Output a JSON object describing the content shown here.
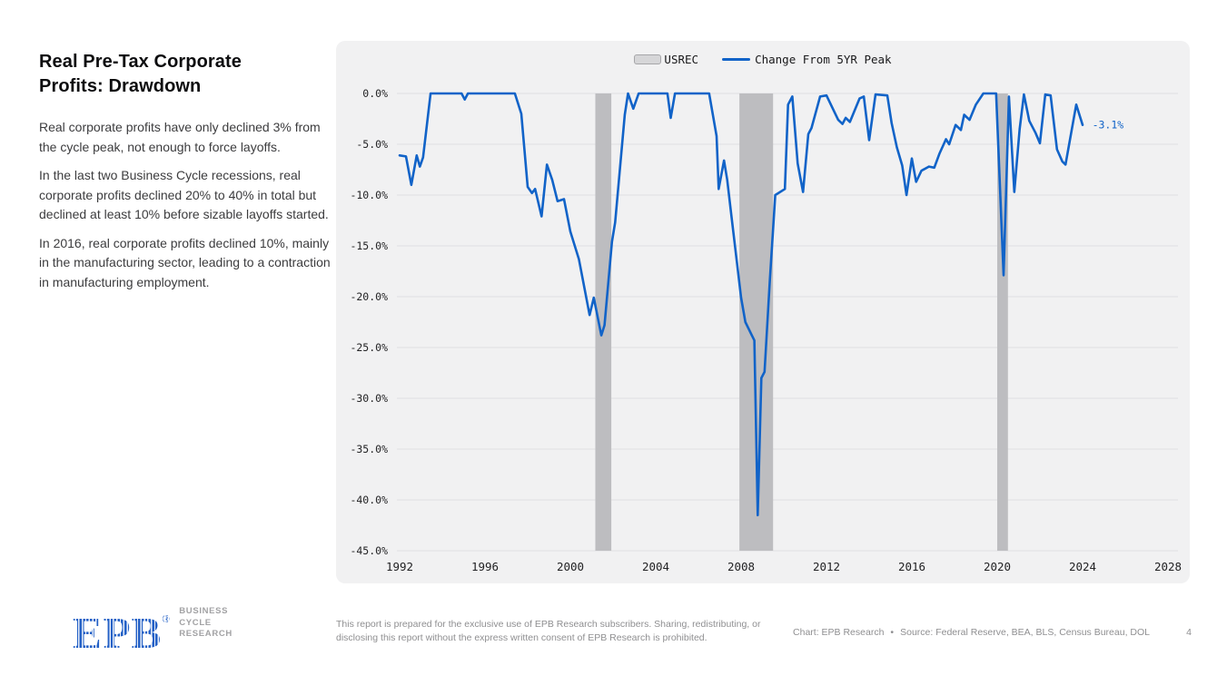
{
  "page": {
    "background": "#ffffff",
    "page_number": "4"
  },
  "sidebar": {
    "title_lines": [
      "Real Pre-Tax Corporate",
      "Profits: Drawdown"
    ],
    "paragraphs": [
      "Real corporate profits have only declined 3% from the cycle peak, not enough to force layoffs.",
      "In the last two Business Cycle recessions, real corporate profits declined 20% to 40% in total but declined at least 10% before sizable layoffs started.",
      "In 2016, real corporate profits declined 10%, mainly in the manufacturing sector, leading to a contraction in manufacturing employment."
    ]
  },
  "chart": {
    "legend_items": [
      {
        "label": "USREC",
        "swatch": "band",
        "fill": "#d6d6d8",
        "border": "#a6a6a9"
      },
      {
        "label": "Change From 5YR Peak",
        "swatch": "line",
        "color": "#1163c8"
      }
    ]
  },
  "chart_data": {
    "type": "line",
    "title": "",
    "xlabel": "",
    "ylabel": "",
    "xlim": [
      1992,
      2028.6
    ],
    "ylim": [
      -45,
      0
    ],
    "grid": true,
    "legend_position": "top",
    "x_ticks": [
      1992,
      1996,
      2000,
      2004,
      2008,
      2012,
      2016,
      2020,
      2024,
      2028
    ],
    "y_ticks": [
      "0.0%",
      "-5.0%",
      "-10.0%",
      "-15.0%",
      "-20.0%",
      "-25.0%",
      "-30.0%",
      "-35.0%",
      "-40.0%",
      "-45.0%"
    ],
    "recession_bands": [
      [
        2001.17,
        2001.92
      ],
      [
        2007.92,
        2009.5
      ],
      [
        2020.0,
        2020.5
      ]
    ],
    "band_color": "#bdbdc0",
    "gridline_color": "#dfdfe1",
    "annotation": {
      "label": "-3.1%",
      "x": 2024.45,
      "y": -3.1,
      "color": "#1163c8"
    },
    "series": [
      {
        "name": "Change From 5YR Peak",
        "color": "#1163c8",
        "points": [
          [
            1992.0,
            -6.1
          ],
          [
            1992.3,
            -6.2
          ],
          [
            1992.55,
            -9.0
          ],
          [
            1992.8,
            -6.1
          ],
          [
            1992.95,
            -7.2
          ],
          [
            1993.1,
            -6.3
          ],
          [
            1993.45,
            0
          ],
          [
            1994.9,
            0
          ],
          [
            1995.05,
            -0.6
          ],
          [
            1995.2,
            0
          ],
          [
            1997.4,
            0
          ],
          [
            1997.7,
            -2.0
          ],
          [
            1998.0,
            -9.2
          ],
          [
            1998.2,
            -9.8
          ],
          [
            1998.35,
            -9.4
          ],
          [
            1998.65,
            -12.1
          ],
          [
            1998.9,
            -7.0
          ],
          [
            1999.15,
            -8.5
          ],
          [
            1999.4,
            -10.6
          ],
          [
            1999.7,
            -10.4
          ],
          [
            2000.0,
            -13.6
          ],
          [
            2000.4,
            -16.3
          ],
          [
            2000.9,
            -21.8
          ],
          [
            2001.1,
            -20.1
          ],
          [
            2001.45,
            -23.8
          ],
          [
            2001.6,
            -22.8
          ],
          [
            2001.95,
            -14.6
          ],
          [
            2002.1,
            -12.7
          ],
          [
            2002.55,
            -2.1
          ],
          [
            2002.7,
            0
          ],
          [
            2002.95,
            -1.5
          ],
          [
            2003.2,
            0
          ],
          [
            2004.55,
            0
          ],
          [
            2004.7,
            -2.4
          ],
          [
            2004.9,
            0
          ],
          [
            2006.5,
            0
          ],
          [
            2006.85,
            -4.2
          ],
          [
            2006.95,
            -9.4
          ],
          [
            2007.2,
            -6.6
          ],
          [
            2007.35,
            -8.5
          ],
          [
            2007.55,
            -12.1
          ],
          [
            2008.0,
            -20.1
          ],
          [
            2008.2,
            -22.5
          ],
          [
            2008.5,
            -23.8
          ],
          [
            2008.62,
            -24.3
          ],
          [
            2008.78,
            -41.5
          ],
          [
            2008.95,
            -28.0
          ],
          [
            2009.1,
            -27.4
          ],
          [
            2009.35,
            -18.3
          ],
          [
            2009.6,
            -10.0
          ],
          [
            2010.05,
            -9.4
          ],
          [
            2010.2,
            -1.1
          ],
          [
            2010.4,
            -0.3
          ],
          [
            2010.65,
            -6.9
          ],
          [
            2010.9,
            -9.7
          ],
          [
            2011.15,
            -4.0
          ],
          [
            2011.3,
            -3.4
          ],
          [
            2011.7,
            -0.3
          ],
          [
            2012.0,
            -0.2
          ],
          [
            2012.3,
            -1.5
          ],
          [
            2012.55,
            -2.6
          ],
          [
            2012.75,
            -3.0
          ],
          [
            2012.9,
            -2.4
          ],
          [
            2013.1,
            -2.8
          ],
          [
            2013.55,
            -0.5
          ],
          [
            2013.75,
            -0.3
          ],
          [
            2014.0,
            -4.6
          ],
          [
            2014.3,
            -0.1
          ],
          [
            2014.85,
            -0.2
          ],
          [
            2015.05,
            -2.9
          ],
          [
            2015.3,
            -5.3
          ],
          [
            2015.55,
            -7.1
          ],
          [
            2015.75,
            -10.0
          ],
          [
            2016.0,
            -6.4
          ],
          [
            2016.2,
            -8.7
          ],
          [
            2016.45,
            -7.6
          ],
          [
            2016.8,
            -7.2
          ],
          [
            2017.05,
            -7.3
          ],
          [
            2017.3,
            -5.9
          ],
          [
            2017.6,
            -4.5
          ],
          [
            2017.75,
            -5.0
          ],
          [
            2018.05,
            -3.1
          ],
          [
            2018.3,
            -3.6
          ],
          [
            2018.45,
            -2.1
          ],
          [
            2018.7,
            -2.6
          ],
          [
            2019.0,
            -1.1
          ],
          [
            2019.35,
            0
          ],
          [
            2019.95,
            0
          ],
          [
            2020.3,
            -17.9
          ],
          [
            2020.55,
            -0.3
          ],
          [
            2020.8,
            -9.7
          ],
          [
            2021.05,
            -3.5
          ],
          [
            2021.25,
            -0.1
          ],
          [
            2021.5,
            -2.7
          ],
          [
            2021.8,
            -3.9
          ],
          [
            2022.0,
            -4.9
          ],
          [
            2022.25,
            -0.1
          ],
          [
            2022.5,
            -0.2
          ],
          [
            2022.8,
            -5.5
          ],
          [
            2023.05,
            -6.7
          ],
          [
            2023.2,
            -7.0
          ],
          [
            2023.7,
            -1.1
          ],
          [
            2024.0,
            -3.1
          ]
        ]
      }
    ]
  },
  "footer": {
    "logo_text": "EPB",
    "logo_reg": "®",
    "org_lines": [
      "BUSINESS",
      "CYCLE",
      "RESEARCH"
    ],
    "disclaimer": "This report is prepared for the exclusive use of EPB Research subscribers. Sharing, redistributing, or disclosing this report without the express written consent of EPB Research is prohibited.",
    "chart_credit": "Chart: EPB Research",
    "separator": "•",
    "source": "Source: Federal Reserve, BEA, BLS, Census Bureau, DOL"
  }
}
